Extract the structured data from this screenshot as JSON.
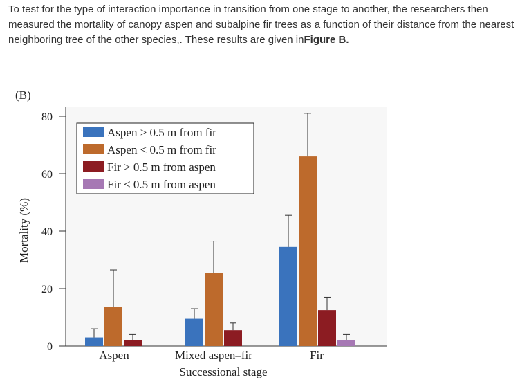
{
  "intro": {
    "text": "To test for the type of interaction importance in transition from one stage to another, the researchers then measured the mortality of canopy aspen and subalpine fir trees as a function of their distance from the nearest neighboring tree of the other species,. These results are given in",
    "link_text": "Figure B."
  },
  "chart_data": {
    "type": "bar",
    "panel_label": "(B)",
    "title": "",
    "xlabel": "Successional stage",
    "ylabel": "Mortality (%)",
    "ylim": [
      0,
      80
    ],
    "yticks": [
      0,
      20,
      40,
      60,
      80
    ],
    "categories": [
      "Aspen",
      "Mixed aspen–fir",
      "Fir"
    ],
    "legend_position": "top-left",
    "grid": false,
    "series": [
      {
        "name": "Aspen > 0.5 m from fir",
        "color": "#3a73bd",
        "values": [
          3,
          9.5,
          34.5
        ],
        "errors": [
          3,
          3.5,
          11
        ]
      },
      {
        "name": "Aspen < 0.5 m from fir",
        "color": "#bd6a2c",
        "values": [
          13.5,
          25.5,
          66
        ],
        "errors": [
          13,
          11,
          15
        ]
      },
      {
        "name": "Fir > 0.5 m from aspen",
        "color": "#8c1c22",
        "values": [
          2,
          5.5,
          12.5
        ],
        "errors": [
          2,
          2.5,
          4.5
        ]
      },
      {
        "name": "Fir < 0.5 m from aspen",
        "color": "#a678b4",
        "values": [
          null,
          null,
          2
        ],
        "errors": [
          null,
          null,
          2
        ]
      }
    ]
  }
}
